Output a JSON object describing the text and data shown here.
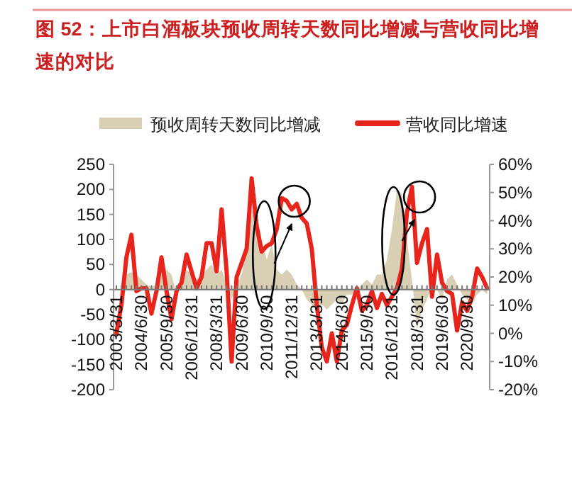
{
  "chart_data": {
    "type": "line",
    "title": "图 52：上市白酒板块预收周转天数同比增减与营收同比增速的对比",
    "categories": [
      "2003/3/31",
      null,
      null,
      null,
      null,
      "2004/6/30",
      null,
      null,
      null,
      null,
      "2005/9/30",
      null,
      null,
      null,
      null,
      "2006/12/31",
      null,
      null,
      null,
      null,
      "2008/3/31",
      null,
      null,
      null,
      null,
      "2009/6/30",
      null,
      null,
      null,
      null,
      "2010/9/30",
      null,
      null,
      null,
      null,
      "2011/12/31",
      null,
      null,
      null,
      null,
      "2013/3/31",
      null,
      null,
      null,
      null,
      "2014/6/30",
      null,
      null,
      null,
      null,
      "2015/9/30",
      null,
      null,
      null,
      null,
      "2016/12/31",
      null,
      null,
      null,
      null,
      "2018/3/31",
      null,
      null,
      null,
      null,
      "2019/6/30",
      null,
      null,
      null,
      null,
      "2020/9/30",
      null,
      null,
      null,
      null
    ],
    "series": [
      {
        "name": "预收周转天数同比增减",
        "type": "area",
        "color": "#d9cfb5",
        "values": [
          0,
          0,
          30,
          35,
          30,
          20,
          10,
          5,
          10,
          40,
          40,
          30,
          -10,
          20,
          40,
          30,
          20,
          30,
          40,
          50,
          30,
          40,
          10,
          -20,
          10,
          30,
          80,
          160,
          150,
          100,
          60,
          90,
          40,
          30,
          40,
          30,
          10,
          0,
          -20,
          -30,
          -40,
          -30,
          -40,
          -30,
          -20,
          -30,
          -10,
          -10,
          0,
          10,
          20,
          10,
          30,
          30,
          60,
          120,
          200,
          190,
          100,
          20,
          -80,
          -40,
          -20,
          10,
          0,
          -20,
          20,
          30,
          10,
          -10,
          -20,
          -30,
          -10,
          0,
          -10
        ]
      },
      {
        "name": "营收同比增速",
        "axis": "y2",
        "color": "#e8251c",
        "values": [
          0,
          10,
          27,
          35,
          15,
          16,
          16,
          7,
          15,
          27,
          15,
          5,
          15,
          18,
          28,
          22,
          16,
          20,
          32,
          32,
          22,
          44,
          22,
          -10,
          20,
          25,
          30,
          55,
          38,
          29,
          31,
          32,
          37,
          48,
          47,
          44,
          46,
          41,
          39,
          30,
          10,
          -5,
          -10,
          0,
          -10,
          1,
          3,
          10,
          16,
          8,
          10,
          15,
          9,
          14,
          10,
          13,
          16,
          23,
          43,
          52,
          25,
          32,
          37,
          13,
          28,
          18,
          15,
          14,
          1,
          11,
          8,
          13,
          23,
          20,
          16
        ]
      }
    ],
    "ylim": [
      -200,
      250
    ],
    "yticks": [
      -200,
      -150,
      -100,
      -50,
      0,
      50,
      100,
      150,
      200,
      250
    ],
    "y2lim": [
      -20,
      60
    ],
    "y2ticks": [
      {
        "value": -20,
        "label": "-20%"
      },
      {
        "value": -10,
        "label": "-10%"
      },
      {
        "value": 0,
        "label": "0%"
      },
      {
        "value": 10,
        "label": "10%"
      },
      {
        "value": 20,
        "label": "20%"
      },
      {
        "value": 30,
        "label": "30%"
      },
      {
        "value": 40,
        "label": "40%"
      },
      {
        "value": 50,
        "label": "50%"
      },
      {
        "value": 60,
        "label": "60%"
      }
    ],
    "legend": "top",
    "grid": false
  }
}
